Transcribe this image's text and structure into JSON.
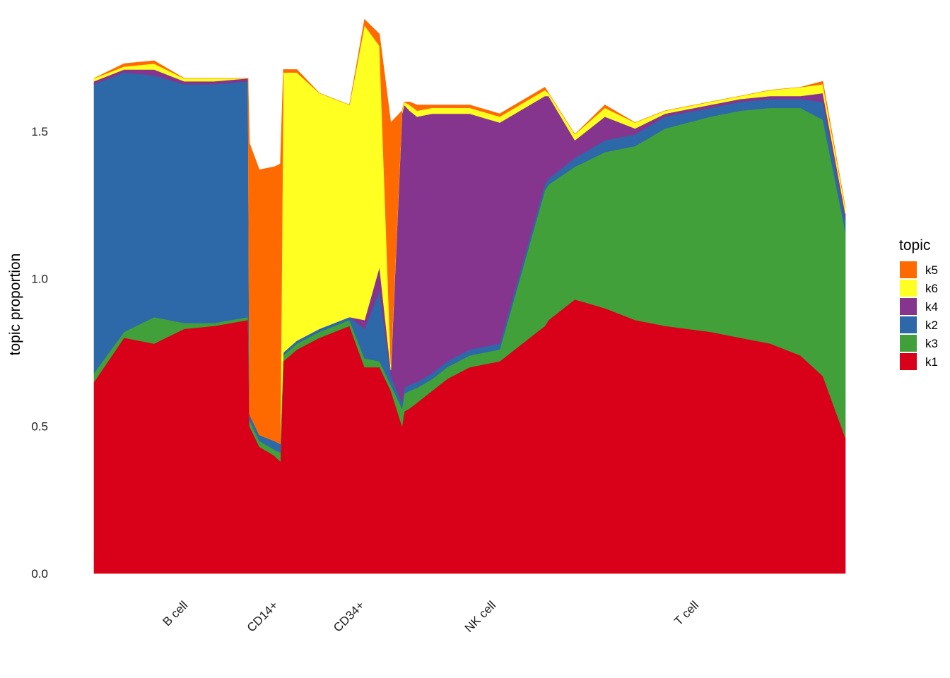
{
  "chart_data": {
    "type": "area",
    "subtype": "stacked",
    "title": "",
    "xlabel": "",
    "ylabel": "topic proportion",
    "ylim": [
      0,
      1.85
    ],
    "yticks": [
      "0.0",
      "0.5",
      "1.0",
      "1.5"
    ],
    "grid": false,
    "legend": {
      "title": "topic",
      "position": "right",
      "entries": [
        "k5",
        "k6",
        "k4",
        "k2",
        "k3",
        "k1"
      ]
    },
    "x": [
      0,
      0.04,
      0.08,
      0.12,
      0.16,
      0.205,
      0.207,
      0.22,
      0.24,
      0.248,
      0.252,
      0.27,
      0.3,
      0.34,
      0.36,
      0.38,
      0.395,
      0.41,
      0.413,
      0.42,
      0.43,
      0.45,
      0.47,
      0.5,
      0.54,
      0.6,
      0.605,
      0.64,
      0.68,
      0.72,
      0.76,
      0.82,
      0.86,
      0.9,
      0.94,
      0.97,
      1.0
    ],
    "groups": [
      {
        "label": "B cell",
        "x": 0.12
      },
      {
        "label": "CD14+",
        "x": 0.24
      },
      {
        "label": "CD34+",
        "x": 0.355
      },
      {
        "label": "NK cell",
        "x": 0.53
      },
      {
        "label": "T cell",
        "x": 0.8
      }
    ],
    "series": [
      {
        "name": "k1",
        "color": "#D9001A",
        "values": [
          0.65,
          0.8,
          0.78,
          0.83,
          0.84,
          0.86,
          0.5,
          0.43,
          0.4,
          0.38,
          0.72,
          0.76,
          0.8,
          0.84,
          0.7,
          0.7,
          0.62,
          0.5,
          0.55,
          0.56,
          0.58,
          0.62,
          0.66,
          0.7,
          0.72,
          0.84,
          0.86,
          0.93,
          0.9,
          0.86,
          0.84,
          0.82,
          0.8,
          0.78,
          0.74,
          0.67,
          0.46
        ]
      },
      {
        "name": "k3",
        "color": "#42A03B",
        "values": [
          0.03,
          0.02,
          0.09,
          0.02,
          0.01,
          0.01,
          0.02,
          0.02,
          0.02,
          0.03,
          0.02,
          0.02,
          0.02,
          0.02,
          0.03,
          0.02,
          0.02,
          0.06,
          0.06,
          0.06,
          0.05,
          0.04,
          0.04,
          0.04,
          0.04,
          0.46,
          0.46,
          0.45,
          0.53,
          0.59,
          0.67,
          0.73,
          0.77,
          0.8,
          0.84,
          0.87,
          0.7
        ]
      },
      {
        "name": "k2",
        "color": "#2D68A8",
        "values": [
          0.98,
          0.88,
          0.82,
          0.81,
          0.81,
          0.8,
          0.02,
          0.02,
          0.03,
          0.03,
          0.01,
          0.01,
          0.01,
          0.01,
          0.1,
          0.24,
          0.03,
          0.02,
          0.02,
          0.02,
          0.02,
          0.02,
          0.02,
          0.02,
          0.02,
          0.02,
          0.02,
          0.03,
          0.04,
          0.04,
          0.04,
          0.03,
          0.03,
          0.03,
          0.03,
          0.06,
          0.04
        ]
      },
      {
        "name": "k4",
        "color": "#86358F",
        "values": [
          0.01,
          0.01,
          0.02,
          0.01,
          0.01,
          0.01,
          0.0,
          0.0,
          0.0,
          0.0,
          0.0,
          0.0,
          0.0,
          0.0,
          0.03,
          0.08,
          0.02,
          0.98,
          0.96,
          0.93,
          0.9,
          0.88,
          0.84,
          0.8,
          0.75,
          0.3,
          0.28,
          0.06,
          0.08,
          0.02,
          0.01,
          0.01,
          0.01,
          0.01,
          0.01,
          0.03,
          0.02
        ]
      },
      {
        "name": "k6",
        "color": "#FFFF22",
        "values": [
          0.01,
          0.01,
          0.02,
          0.01,
          0.01,
          0.0,
          0.0,
          0.0,
          0.0,
          0.0,
          0.95,
          0.91,
          0.8,
          0.72,
          1.0,
          0.75,
          0.02,
          0.01,
          0.01,
          0.02,
          0.02,
          0.02,
          0.02,
          0.02,
          0.02,
          0.02,
          0.01,
          0.02,
          0.03,
          0.02,
          0.01,
          0.01,
          0.01,
          0.02,
          0.03,
          0.03,
          0.02
        ]
      },
      {
        "name": "k5",
        "color": "#FF6A00",
        "values": [
          0.0,
          0.01,
          0.01,
          0.0,
          0.0,
          0.0,
          0.92,
          0.9,
          0.93,
          0.95,
          0.01,
          0.01,
          0.0,
          0.0,
          0.02,
          0.04,
          0.82,
          0.0,
          0.0,
          0.01,
          0.02,
          0.01,
          0.01,
          0.01,
          0.01,
          0.01,
          0.0,
          0.0,
          0.01,
          0.0,
          0.0,
          0.0,
          0.0,
          0.0,
          0.0,
          0.01,
          0.0
        ]
      }
    ]
  }
}
